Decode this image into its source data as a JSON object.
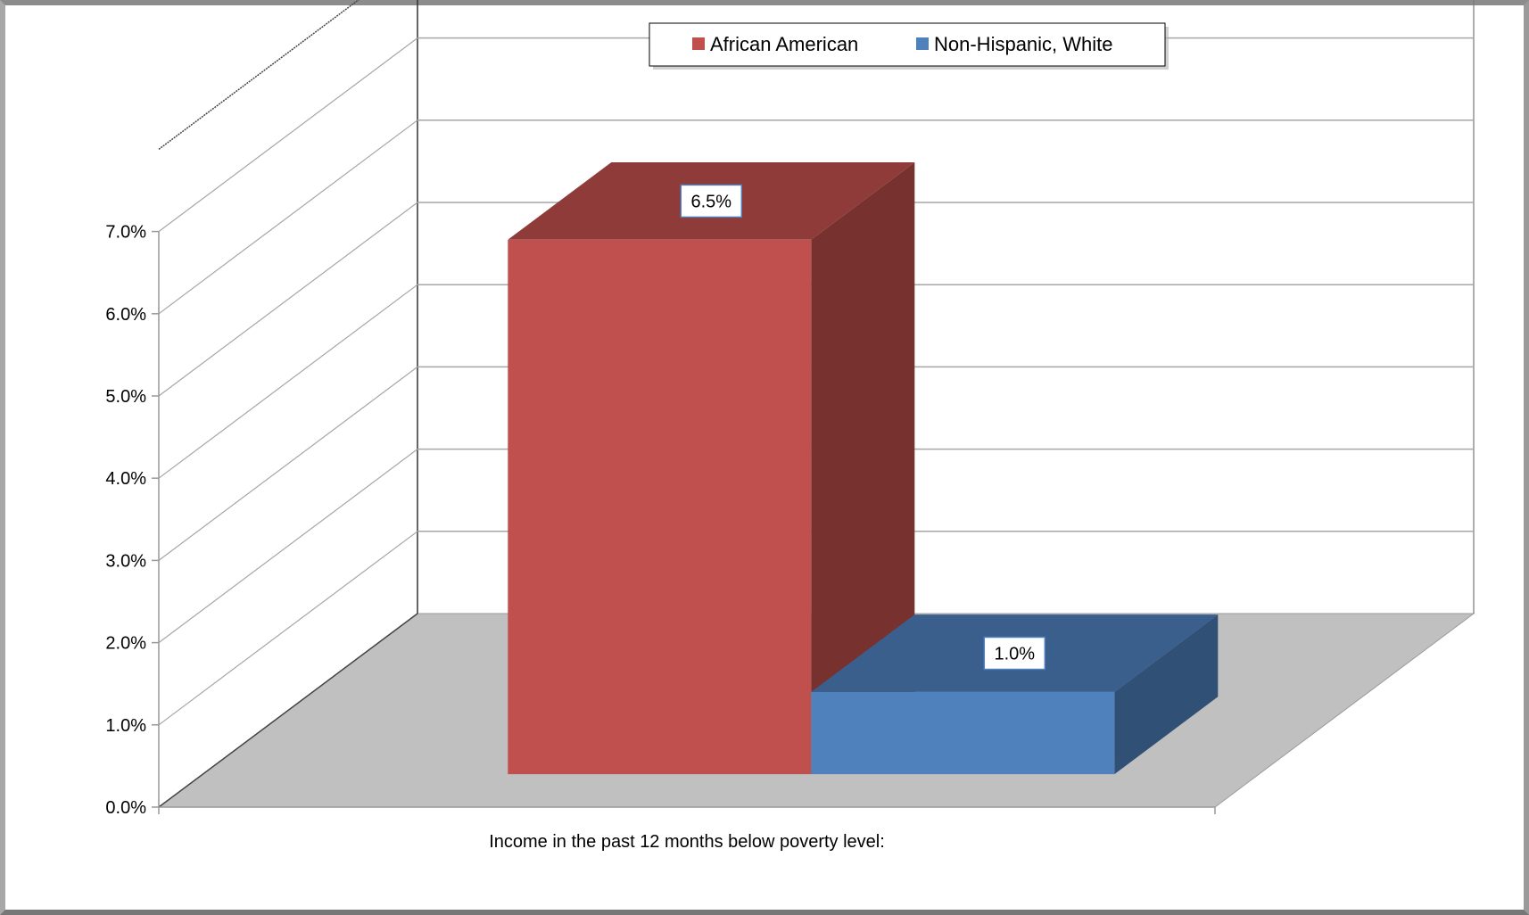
{
  "chart_data": {
    "type": "bar",
    "categories": [
      "Income in the past 12 months below poverty level:"
    ],
    "series": [
      {
        "name": "African American",
        "values": [
          6.5
        ],
        "color": "#C0504D",
        "label": "6.5%"
      },
      {
        "name": "Non-Hispanic, White",
        "values": [
          1.0
        ],
        "color": "#4F81BD",
        "label": "1.0%"
      }
    ],
    "title": "",
    "xlabel": "Income in the past 12 months below poverty level:",
    "ylabel": "",
    "ylim": [
      0,
      7
    ],
    "yticks": [
      "0.0%",
      "1.0%",
      "2.0%",
      "3.0%",
      "4.0%",
      "5.0%",
      "6.0%",
      "7.0%"
    ],
    "grid": true,
    "legend_position": "top",
    "projection": "3d"
  }
}
